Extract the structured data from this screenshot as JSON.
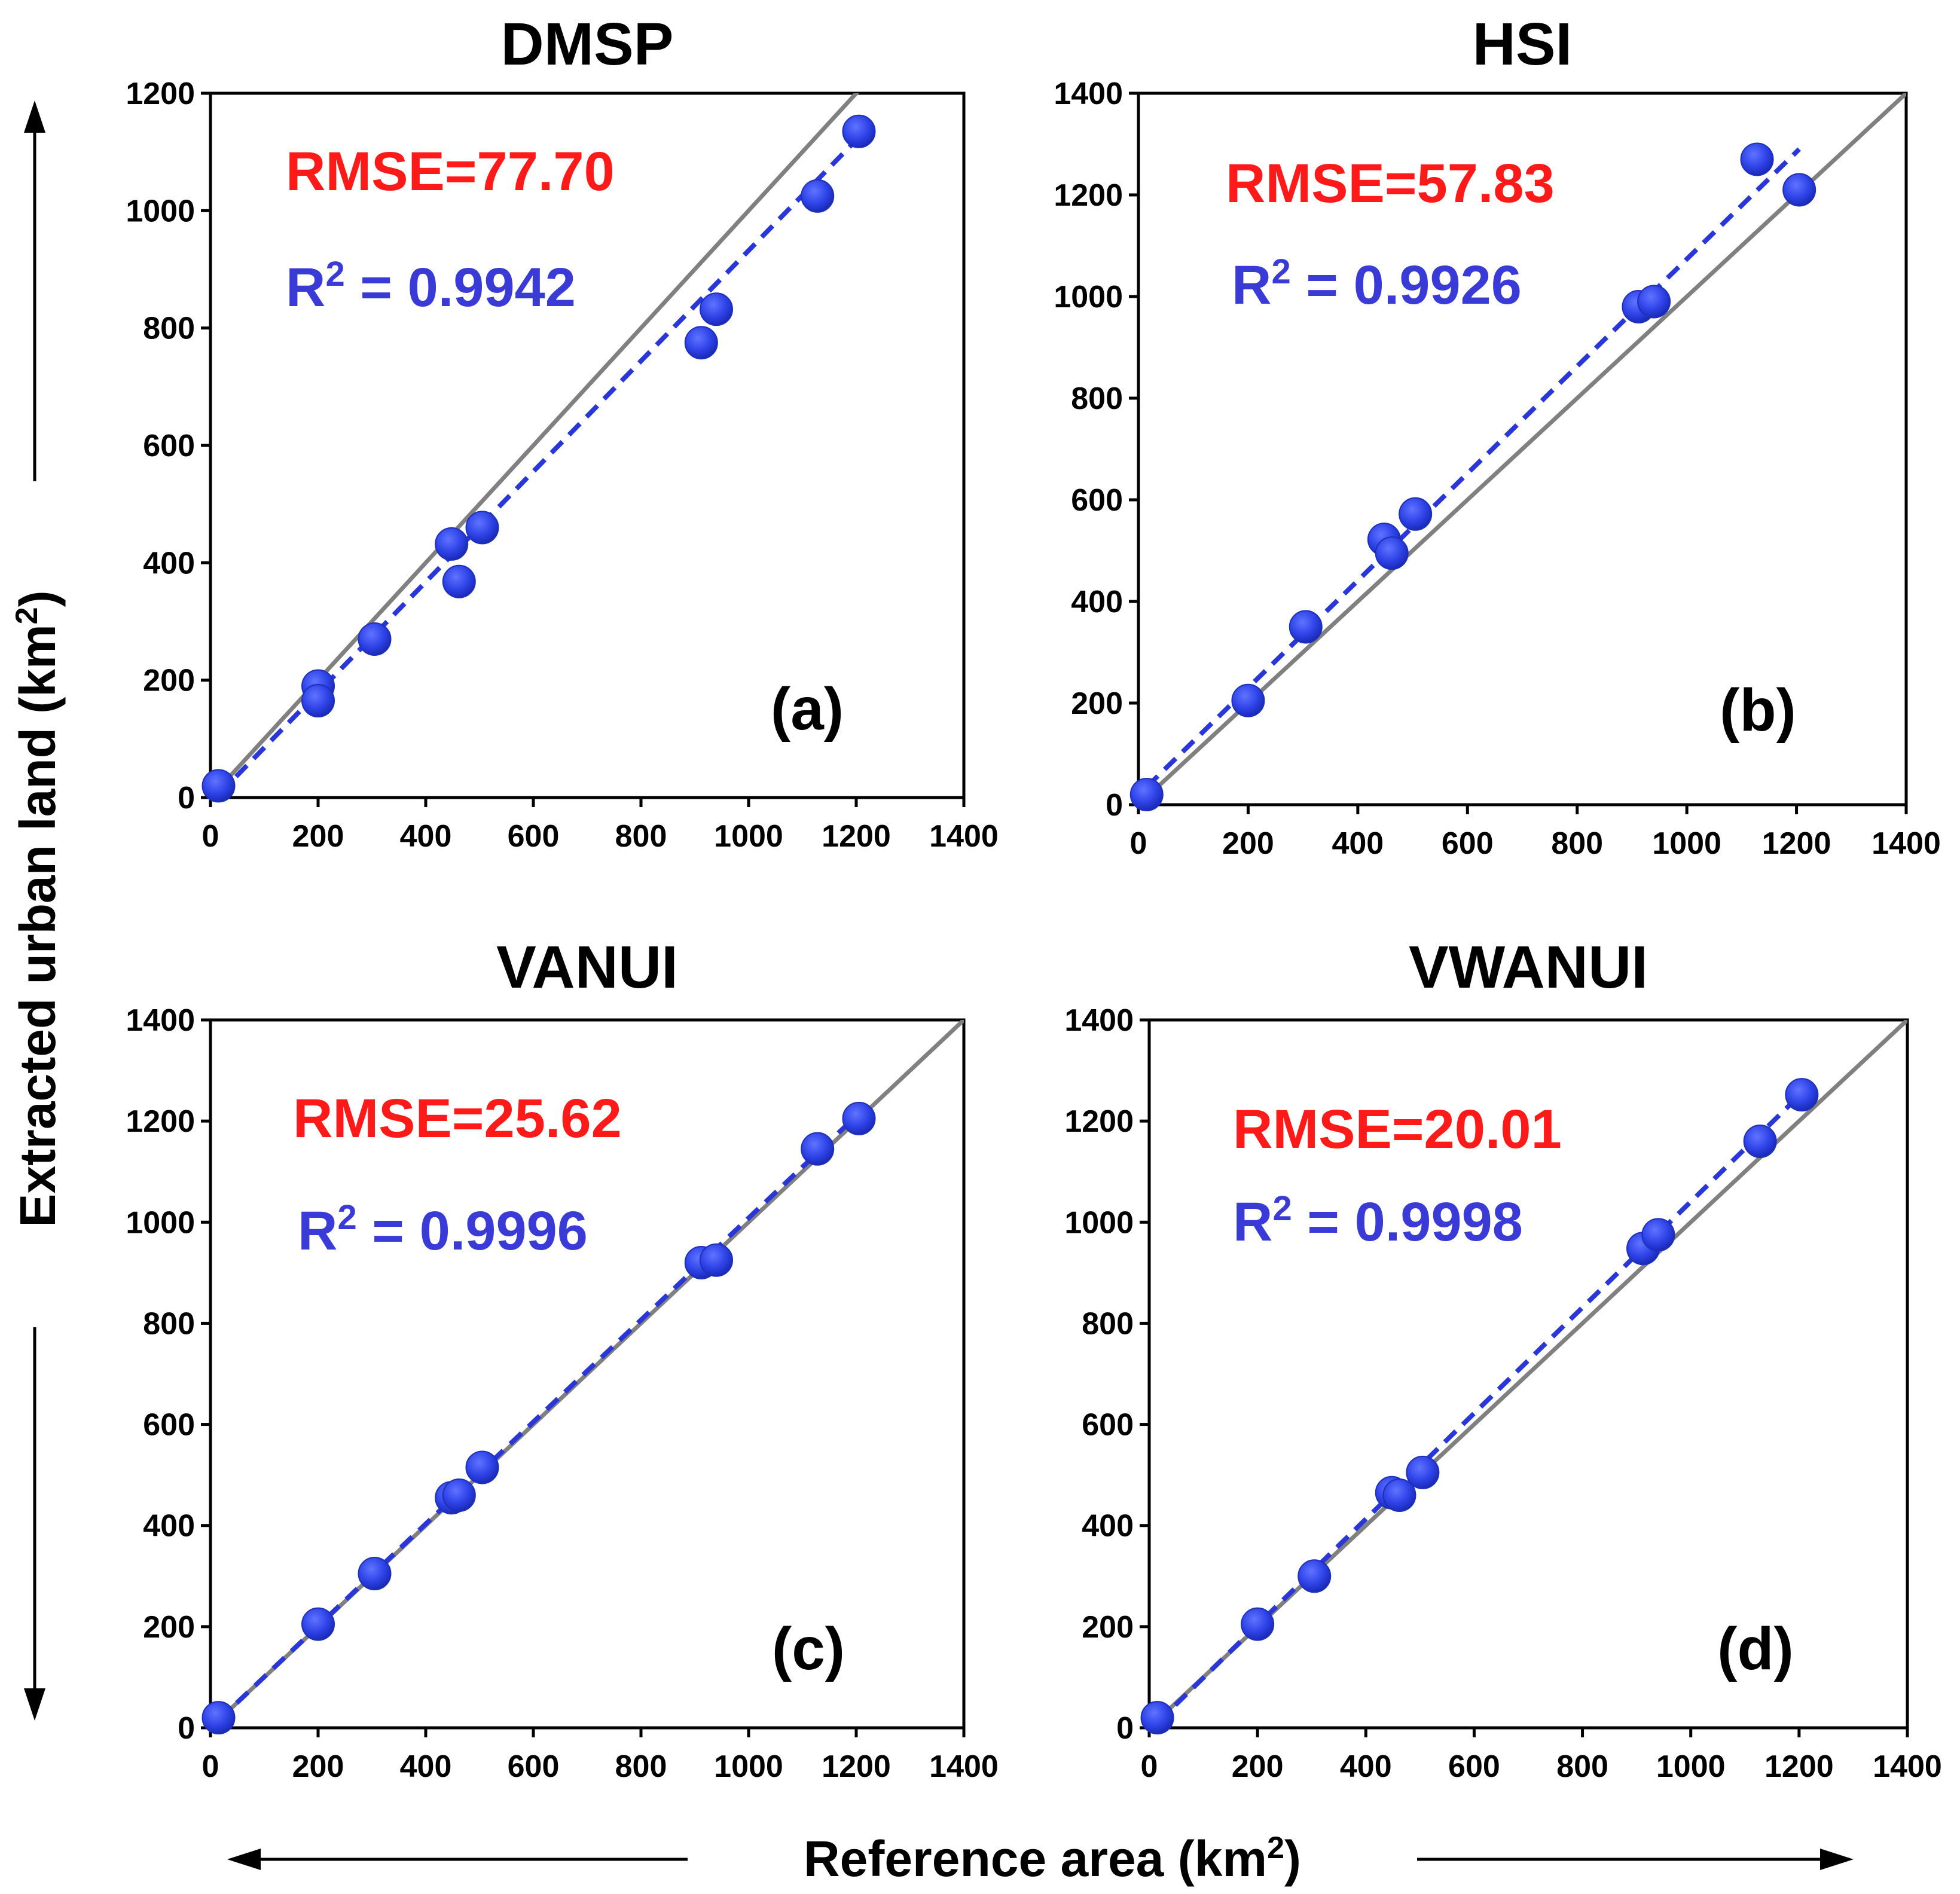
{
  "figure": {
    "y_axis_title": "Extracted urban land (km",
    "y_axis_sup": "2",
    "y_axis_close": ")",
    "x_axis_title": "Reference area (km",
    "x_axis_sup": "2",
    "x_axis_close": ")"
  },
  "colors": {
    "points": "#2f44e8",
    "fit_line": "#2a37d8",
    "identity_line": "#808080",
    "rmse_text": "#ff1a1a",
    "r2_text": "#3a3ad6",
    "axis": "#000000"
  },
  "panels": [
    {
      "title": "DMSP",
      "letter": "(a)",
      "rmse_text": "RMSE=77.70",
      "r2_prefix": "R",
      "r2_sup": "2",
      "r2_value": " = 0.9942"
    },
    {
      "title": "HSI",
      "letter": "(b)",
      "rmse_text": "RMSE=57.83",
      "r2_prefix": "R",
      "r2_sup": "2",
      "r2_value": " = 0.9926"
    },
    {
      "title": "VANUI",
      "letter": "(c)",
      "rmse_text": "RMSE=25.62",
      "r2_prefix": "R",
      "r2_sup": "2",
      "r2_value": " = 0.9996"
    },
    {
      "title": "VWANUI",
      "letter": "(d)",
      "rmse_text": "RMSE=20.01",
      "r2_prefix": "R",
      "r2_sup": "2",
      "r2_value": " = 0.9998"
    }
  ],
  "chart_data": [
    {
      "type": "scatter",
      "title": "DMSP",
      "xlabel": "Reference area (km2)",
      "ylabel": "Extracted urban land (km2)",
      "xlim": [
        0,
        1400
      ],
      "ylim": [
        0,
        1200
      ],
      "xticks": [
        "0",
        "200",
        "400",
        "600",
        "800",
        "1000",
        "1200",
        "1400"
      ],
      "yticks": [
        "0",
        "200",
        "400",
        "600",
        "800",
        "1000",
        "1200"
      ],
      "x": [
        15,
        200,
        200,
        305,
        448,
        462,
        505,
        912,
        940,
        1128,
        1205
      ],
      "y": [
        20,
        190,
        165,
        270,
        432,
        368,
        460,
        775,
        832,
        1025,
        1135
      ],
      "fit_line": [
        [
          15,
          5
        ],
        [
          1205,
          1125
        ]
      ],
      "identity_line": [
        [
          0,
          0
        ],
        [
          1400,
          1400
        ]
      ],
      "annotations": [
        "RMSE=77.70",
        "R2 = 0.9942",
        "(a)"
      ]
    },
    {
      "type": "scatter",
      "title": "HSI",
      "xlabel": "Reference area (km2)",
      "ylabel": "Extracted urban land (km2)",
      "xlim": [
        0,
        1400
      ],
      "ylim": [
        0,
        1400
      ],
      "xticks": [
        "0",
        "200",
        "400",
        "600",
        "800",
        "1000",
        "1200",
        "1400"
      ],
      "yticks": [
        "0",
        "200",
        "400",
        "600",
        "800",
        "1000",
        "1200",
        "1400"
      ],
      "x": [
        15,
        200,
        305,
        448,
        462,
        505,
        912,
        940,
        1128,
        1205
      ],
      "y": [
        20,
        205,
        350,
        522,
        495,
        572,
        980,
        990,
        1270,
        1210
      ],
      "fit_line": [
        [
          15,
          35
        ],
        [
          1205,
          1290
        ]
      ],
      "identity_line": [
        [
          0,
          0
        ],
        [
          1400,
          1400
        ]
      ],
      "annotations": [
        "RMSE=57.83",
        "R2 = 0.9926",
        "(b)"
      ]
    },
    {
      "type": "scatter",
      "title": "VANUI",
      "xlabel": "Reference area (km2)",
      "ylabel": "Extracted urban land (km2)",
      "xlim": [
        0,
        1400
      ],
      "ylim": [
        0,
        1400
      ],
      "xticks": [
        "0",
        "200",
        "400",
        "600",
        "800",
        "1000",
        "1200",
        "1400"
      ],
      "yticks": [
        "0",
        "200",
        "400",
        "600",
        "800",
        "1000",
        "1200",
        "1400"
      ],
      "x": [
        15,
        200,
        305,
        448,
        462,
        505,
        912,
        940,
        1128,
        1205
      ],
      "y": [
        20,
        205,
        305,
        455,
        460,
        515,
        920,
        925,
        1145,
        1205
      ],
      "fit_line": [
        [
          15,
          15
        ],
        [
          1205,
          1215
        ]
      ],
      "identity_line": [
        [
          0,
          0
        ],
        [
          1400,
          1400
        ]
      ],
      "annotations": [
        "RMSE=25.62",
        "R2 = 0.9996",
        "(c)"
      ]
    },
    {
      "type": "scatter",
      "title": "VWANUI",
      "xlabel": "Reference area (km2)",
      "ylabel": "Extracted urban land (km2)",
      "xlim": [
        0,
        1400
      ],
      "ylim": [
        0,
        1400
      ],
      "xticks": [
        "0",
        "200",
        "400",
        "600",
        "800",
        "1000",
        "1200",
        "1400"
      ],
      "yticks": [
        "0",
        "200",
        "400",
        "600",
        "800",
        "1000",
        "1200",
        "1400"
      ],
      "x": [
        15,
        200,
        305,
        448,
        462,
        505,
        912,
        940,
        1128,
        1205
      ],
      "y": [
        20,
        205,
        300,
        465,
        460,
        505,
        948,
        975,
        1160,
        1252
      ],
      "fit_line": [
        [
          15,
          10
        ],
        [
          1205,
          1255
        ]
      ],
      "identity_line": [
        [
          0,
          0
        ],
        [
          1400,
          1400
        ]
      ],
      "annotations": [
        "RMSE=20.01",
        "R2 = 0.9998",
        "(d)"
      ]
    }
  ]
}
